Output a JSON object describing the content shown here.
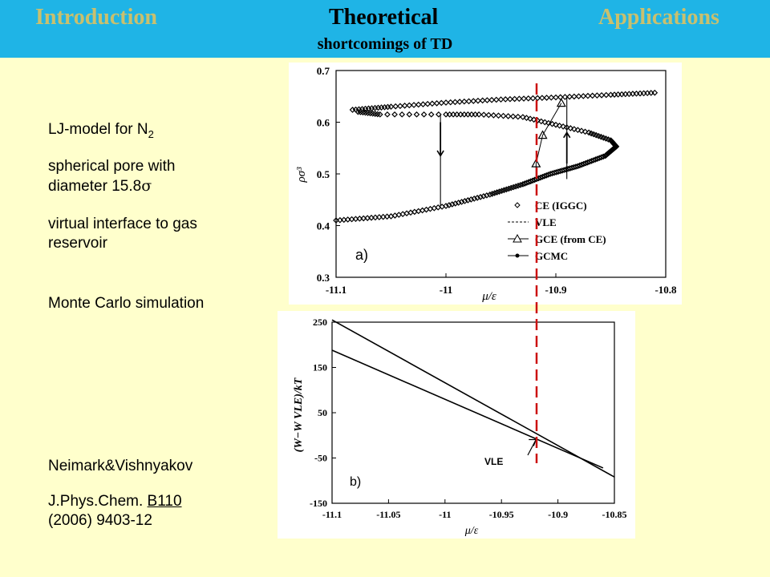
{
  "header": {
    "nav": [
      "Introduction",
      "Theoretical",
      "Applications"
    ],
    "subtitle": "shortcomings of TD"
  },
  "left_text": {
    "model_prefix": "LJ-model for N",
    "model_sub": "2",
    "pore_line1": "spherical pore with",
    "pore_line2_prefix": "diameter 15.8",
    "pore_symbol": "σ",
    "interface_line1": "virtual interface to gas",
    "interface_line2": "reservoir",
    "simulation": "Monte Carlo simulation",
    "authors": "Neimark&Vishnyakov",
    "journal_prefix": "J.Phys.Chem. ",
    "journal_volume": "B110",
    "journal_line2": "(2006) 9403-12"
  },
  "colors": {
    "header_bg": "#1fb4e6",
    "page_bg": "#ffffcc",
    "nav_inactive": "#c9c06e",
    "marker_line": "#cc1111"
  },
  "chart_data": [
    {
      "type": "scatter",
      "panel_label": "a)",
      "xlabel": "μ/ε",
      "ylabel": "ρσ³",
      "xlim": [
        -11.1,
        -10.8
      ],
      "ylim": [
        0.3,
        0.7
      ],
      "xticks": [
        "-11.1",
        "-11",
        "-10.9",
        "-10.8"
      ],
      "yticks": [
        "0.3",
        "0.4",
        "0.5",
        "0.6",
        "0.7"
      ],
      "legend_position": "bottom-right",
      "series": [
        {
          "name": "CE (IGGC)"
        },
        {
          "name": "VLE"
        },
        {
          "name": "GCE (from CE)"
        },
        {
          "name": "GCMC"
        }
      ]
    },
    {
      "type": "line",
      "panel_label": "b)",
      "xlabel": "μ/ε",
      "ylabel": "(W−W VLE)/kT",
      "xlim": [
        -11.1,
        -10.85
      ],
      "ylim": [
        -150,
        250
      ],
      "xticks": [
        "-11.1",
        "-11.05",
        "-11",
        "-10.95",
        "-10.9",
        "-10.85"
      ],
      "yticks": [
        "-150",
        "-50",
        "50",
        "150",
        "250"
      ],
      "annotation": "VLE",
      "lines": [
        {
          "x": [
            -11.1,
            -10.86
          ],
          "y": [
            188,
            -72
          ]
        },
        {
          "x": [
            -11.1,
            -10.85
          ],
          "y": [
            255,
            -92
          ]
        }
      ]
    }
  ]
}
